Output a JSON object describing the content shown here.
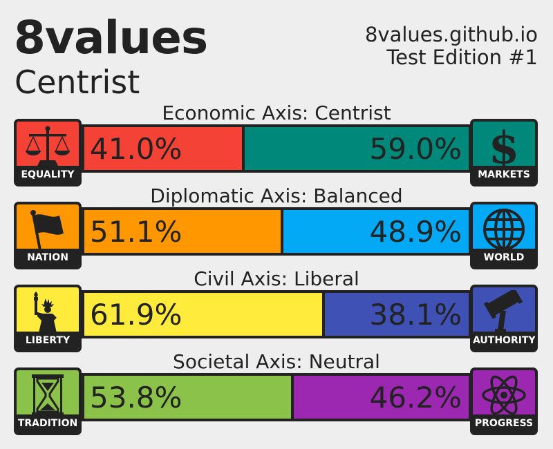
{
  "header": {
    "brand": "8values",
    "ideology": "Centrist",
    "site": "8values.github.io",
    "edition": "Test Edition #1"
  },
  "colors": {
    "equality": "#f44336",
    "markets": "#00897b",
    "nation": "#ff9800",
    "world": "#03a9f4",
    "liberty": "#ffeb3b",
    "authority": "#3f51b5",
    "tradition": "#8bc34a",
    "progress": "#9c27b0"
  },
  "axes": [
    {
      "title": "Economic Axis: Centrist",
      "left_label": "EQUALITY",
      "left_icon": "scales-icon",
      "left_value": 41.0,
      "left_text": "41.0%",
      "right_label": "MARKETS",
      "right_icon": "dollar-icon",
      "right_value": 59.0,
      "right_text": "59.0%"
    },
    {
      "title": "Diplomatic Axis: Balanced",
      "left_label": "NATION",
      "left_icon": "flag-icon",
      "left_value": 51.1,
      "left_text": "51.1%",
      "right_label": "WORLD",
      "right_icon": "globe-icon",
      "right_value": 48.9,
      "right_text": "48.9%"
    },
    {
      "title": "Civil Axis: Liberal",
      "left_label": "LIBERTY",
      "left_icon": "statue-of-liberty-icon",
      "left_value": 61.9,
      "left_text": "61.9%",
      "right_label": "AUTHORITY",
      "right_icon": "gavel-icon",
      "right_value": 38.1,
      "right_text": "38.1%"
    },
    {
      "title": "Societal Axis: Neutral",
      "left_label": "TRADITION",
      "left_icon": "hourglass-icon",
      "left_value": 53.8,
      "left_text": "53.8%",
      "right_label": "PROGRESS",
      "right_icon": "atom-icon",
      "right_value": 46.2,
      "right_text": "46.2%"
    }
  ]
}
